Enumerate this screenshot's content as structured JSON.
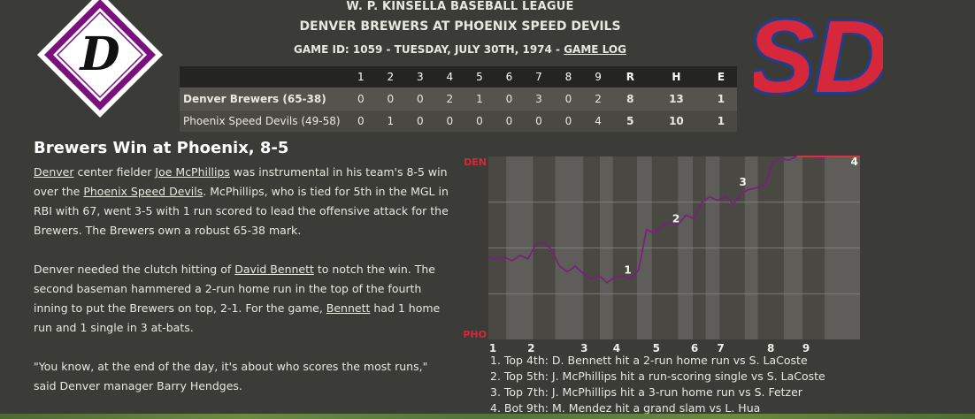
{
  "header": {
    "league": "W. P. KINSELLA BASEBALL LEAGUE",
    "matchup": "DENVER BREWERS AT PHOENIX SPEED DEVILS",
    "game_info": "GAME ID: 1059 - TUESDAY, JULY 30TH, 1974 - ",
    "game_log_link": "GAME LOG"
  },
  "logos": {
    "home_letter": "D",
    "away_letters": "SD"
  },
  "linescore": {
    "headers": [
      "",
      "1",
      "2",
      "3",
      "4",
      "5",
      "6",
      "7",
      "8",
      "9",
      "R",
      "H",
      "E"
    ],
    "rows": [
      {
        "team": "Denver Brewers (65-38)",
        "innings": [
          "0",
          "0",
          "0",
          "2",
          "1",
          "0",
          "3",
          "0",
          "2"
        ],
        "r": "8",
        "h": "13",
        "e": "1"
      },
      {
        "team": "Phoenix Speed Devils (49-58)",
        "innings": [
          "0",
          "1",
          "0",
          "0",
          "0",
          "0",
          "0",
          "0",
          "4"
        ],
        "r": "5",
        "h": "10",
        "e": "1"
      }
    ]
  },
  "story": {
    "headline": "Brewers Win at Phoenix, 8-5",
    "p1": {
      "l1": "Denver",
      "t1": " center fielder ",
      "l2": "Joe McPhillips",
      "t2": " was instrumental in his team's 8-5 win over the ",
      "l3": "Phoenix Speed Devils",
      "t3": ". McPhillips, who is tied for 5th in the MGL in RBI with 67, went 3-5 with 1 run scored to lead the offensive attack for the Brewers. The Brewers own a robust 65-38 mark."
    },
    "p2": {
      "t1": "Denver needed the clutch hitting of ",
      "l1": "David Bennett",
      "t2": " to notch the win. The second baseman hammered a 2-run home run in the top of the fourth inning to put the Brewers on top, 2-1. For the game, ",
      "l2": "Bennett",
      "t3": " had 1 home run and 1 single in 3 at-bats."
    },
    "p3": "\"You know, at the end of the day, it's about who scores the most runs,\" said Denver manager Barry Hendges."
  },
  "chart_data": {
    "type": "line",
    "top_label": "DEN",
    "bottom_label": "PHO",
    "x_ticks": [
      "1",
      "2",
      "3",
      "4",
      "5",
      "6",
      "7",
      "8",
      "9"
    ],
    "ylim": [
      0,
      1
    ],
    "series": [
      {
        "values": [
          0.45,
          0.44,
          0.45,
          0.43,
          0.46,
          0.44,
          0.52,
          0.53,
          0.49,
          0.4,
          0.37,
          0.4,
          0.36,
          0.33,
          0.35,
          0.31,
          0.34,
          0.35,
          0.33,
          0.38,
          0.6,
          0.58,
          0.62,
          0.64,
          0.63,
          0.68,
          0.66,
          0.75,
          0.78,
          0.76,
          0.78,
          0.74,
          0.8,
          0.82,
          0.83,
          0.85,
          0.97,
          0.99,
          0.98,
          1.0,
          1.0,
          1.0,
          0.99,
          1.0,
          1.0,
          1.0,
          1.0,
          1.0
        ]
      }
    ],
    "markers": [
      "1",
      "2",
      "3",
      "4"
    ],
    "colors": {
      "line": "#7b1e7e",
      "top_line": "#ff3333",
      "label": "#d6283a",
      "shade": "#5e5d59",
      "bg": "#494843"
    }
  },
  "key_plays": [
    "1. Top 4th: D. Bennett hit a 2-run home run vs S. LaCoste",
    "2. Top 5th: J. McPhillips hit a run-scoring single vs S. LaCoste",
    "3. Top 7th: J. McPhillips hit a 3-run home run vs S. Fetzer",
    "4. Bot 9th: M. Mendez hit a grand slam vs L. Hua"
  ]
}
